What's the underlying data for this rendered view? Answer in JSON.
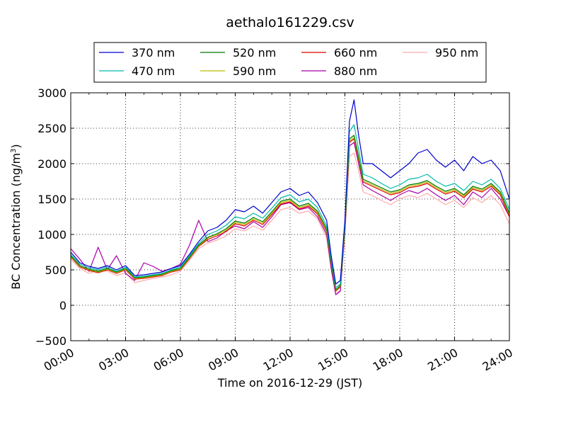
{
  "chart_data": {
    "type": "line",
    "title": "aethalo161229.csv",
    "xlabel": "Time on 2016-12-29 (JST)",
    "ylabel": "BC Concentration (ng/m",
    "ylabel_sup": "3",
    "ylabel_tail": ")",
    "xlim": [
      0,
      24
    ],
    "ylim": [
      -500,
      3000
    ],
    "grid": true,
    "legend_position": "top-center",
    "x_ticks": [
      {
        "value": 0,
        "label": "00:00"
      },
      {
        "value": 3,
        "label": "03:00"
      },
      {
        "value": 6,
        "label": "06:00"
      },
      {
        "value": 9,
        "label": "09:00"
      },
      {
        "value": 12,
        "label": "12:00"
      },
      {
        "value": 15,
        "label": "15:00"
      },
      {
        "value": 18,
        "label": "18:00"
      },
      {
        "value": 21,
        "label": "21:00"
      },
      {
        "value": 24,
        "label": "24:00"
      }
    ],
    "y_ticks": [
      {
        "value": -500,
        "label": "−500"
      },
      {
        "value": 0,
        "label": "0"
      },
      {
        "value": 500,
        "label": "500"
      },
      {
        "value": 1000,
        "label": "1000"
      },
      {
        "value": 1500,
        "label": "1500"
      },
      {
        "value": 2000,
        "label": "2000"
      },
      {
        "value": 2500,
        "label": "2500"
      },
      {
        "value": 3000,
        "label": "3000"
      }
    ],
    "x": [
      0.0,
      0.5,
      1.0,
      1.5,
      2.0,
      2.5,
      3.0,
      3.5,
      4.0,
      4.5,
      5.0,
      5.5,
      6.0,
      6.5,
      7.0,
      7.5,
      8.0,
      8.5,
      9.0,
      9.5,
      10.0,
      10.5,
      11.0,
      11.5,
      12.0,
      12.5,
      13.0,
      13.5,
      14.0,
      14.25,
      14.5,
      14.75,
      15.0,
      15.25,
      15.5,
      15.75,
      16.0,
      16.5,
      17.0,
      17.5,
      18.0,
      18.5,
      19.0,
      19.5,
      20.0,
      20.5,
      21.0,
      21.5,
      22.0,
      22.5,
      23.0,
      23.5,
      24.0
    ],
    "series": [
      {
        "name": "370 nm",
        "color": "#0000cc",
        "values": [
          750,
          600,
          550,
          520,
          560,
          500,
          560,
          420,
          430,
          450,
          470,
          520,
          560,
          720,
          900,
          1050,
          1100,
          1200,
          1350,
          1320,
          1400,
          1300,
          1450,
          1600,
          1650,
          1550,
          1600,
          1450,
          1200,
          700,
          300,
          350,
          1200,
          2600,
          2900,
          2400,
          2000,
          2000,
          1900,
          1800,
          1900,
          2000,
          2150,
          2200,
          2050,
          1950,
          2050,
          1900,
          2100,
          2000,
          2050,
          1900,
          1500
        ]
      },
      {
        "name": "470 nm",
        "color": "#00bbaa",
        "values": [
          720,
          580,
          530,
          500,
          540,
          480,
          540,
          400,
          410,
          430,
          450,
          500,
          540,
          700,
          870,
          1000,
          1050,
          1130,
          1250,
          1220,
          1300,
          1230,
          1370,
          1520,
          1560,
          1460,
          1500,
          1380,
          1120,
          640,
          250,
          300,
          1150,
          2450,
          2550,
          2200,
          1850,
          1800,
          1720,
          1650,
          1700,
          1780,
          1800,
          1850,
          1750,
          1680,
          1720,
          1620,
          1750,
          1700,
          1780,
          1650,
          1350
        ]
      },
      {
        "name": "520 nm",
        "color": "#007700",
        "values": [
          700,
          560,
          510,
          480,
          520,
          470,
          520,
          390,
          400,
          420,
          440,
          490,
          520,
          680,
          850,
          960,
          1010,
          1080,
          1190,
          1160,
          1240,
          1180,
          1320,
          1470,
          1500,
          1400,
          1440,
          1330,
          1080,
          600,
          220,
          280,
          1100,
          2350,
          2400,
          2100,
          1780,
          1720,
          1660,
          1600,
          1630,
          1700,
          1720,
          1760,
          1680,
          1610,
          1650,
          1560,
          1680,
          1640,
          1720,
          1600,
          1300
        ]
      },
      {
        "name": "590 nm",
        "color": "#bbbb00",
        "values": [
          690,
          550,
          500,
          470,
          510,
          460,
          510,
          380,
          390,
          410,
          430,
          480,
          510,
          670,
          840,
          950,
          1000,
          1060,
          1170,
          1140,
          1220,
          1160,
          1300,
          1450,
          1480,
          1380,
          1420,
          1310,
          1060,
          590,
          210,
          270,
          1080,
          2320,
          2370,
          2070,
          1760,
          1700,
          1640,
          1580,
          1610,
          1680,
          1700,
          1740,
          1660,
          1590,
          1630,
          1540,
          1660,
          1620,
          1700,
          1580,
          1280
        ]
      },
      {
        "name": "660 nm",
        "color": "#dd0000",
        "values": [
          680,
          540,
          490,
          460,
          500,
          450,
          500,
          370,
          380,
          400,
          420,
          470,
          500,
          660,
          830,
          930,
          980,
          1040,
          1150,
          1120,
          1200,
          1140,
          1280,
          1430,
          1460,
          1360,
          1400,
          1290,
          1040,
          570,
          200,
          260,
          1060,
          2300,
          2350,
          2050,
          1740,
          1680,
          1620,
          1560,
          1590,
          1660,
          1680,
          1720,
          1640,
          1570,
          1610,
          1520,
          1640,
          1600,
          1680,
          1560,
          1250
        ]
      },
      {
        "name": "880 nm",
        "color": "#aa00aa",
        "values": [
          800,
          650,
          480,
          820,
          500,
          700,
          450,
          350,
          600,
          550,
          480,
          520,
          580,
          850,
          1200,
          900,
          950,
          1050,
          1120,
          1080,
          1180,
          1100,
          1250,
          1420,
          1450,
          1350,
          1380,
          1250,
          1000,
          520,
          150,
          200,
          1050,
          2250,
          2300,
          2000,
          1700,
          1620,
          1550,
          1480,
          1560,
          1620,
          1580,
          1650,
          1560,
          1480,
          1550,
          1420,
          1600,
          1520,
          1650,
          1500,
          1250
        ]
      },
      {
        "name": "950 nm",
        "color": "#ffaaaa",
        "values": [
          650,
          520,
          450,
          500,
          480,
          420,
          460,
          320,
          350,
          380,
          400,
          430,
          480,
          640,
          800,
          880,
          920,
          980,
          1080,
          1050,
          1120,
          1060,
          1200,
          1350,
          1380,
          1300,
          1330,
          1220,
          950,
          500,
          150,
          220,
          1000,
          2100,
          2150,
          1900,
          1600,
          1550,
          1480,
          1420,
          1500,
          1550,
          1520,
          1580,
          1500,
          1420,
          1480,
          1380,
          1520,
          1450,
          1550,
          1420,
          1150
        ]
      }
    ]
  }
}
